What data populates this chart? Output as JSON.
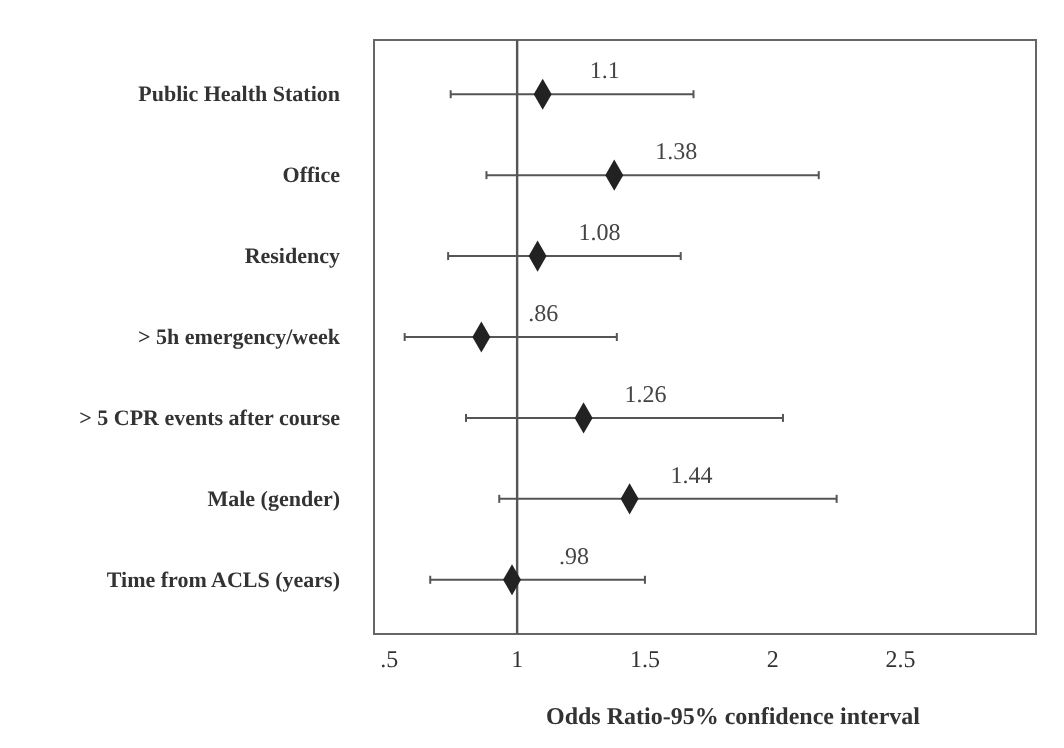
{
  "chart_data": {
    "type": "scatter",
    "orientation": "horizontal",
    "marker": "diamond",
    "categories": [
      "Public Health Station",
      "Office",
      "Residency",
      "> 5h emergency/week",
      "> 5 CPR events after course",
      "Male (gender)",
      "Time from ACLS (years)"
    ],
    "values": [
      1.1,
      1.38,
      1.08,
      0.86,
      1.26,
      1.44,
      0.98
    ],
    "errors": [
      [
        0.74,
        1.69
      ],
      [
        0.88,
        2.18
      ],
      [
        0.73,
        1.64
      ],
      [
        0.56,
        1.39
      ],
      [
        0.8,
        2.04
      ],
      [
        0.93,
        2.25
      ],
      [
        0.66,
        1.5
      ]
    ],
    "value_labels": [
      "1.1",
      "1.38",
      "1.08",
      ".86",
      "1.26",
      "1.44",
      ".98"
    ],
    "color": "#222222",
    "xlim": [
      0.44,
      3.03
    ],
    "xticks": [
      {
        "value": 0.5,
        "label": ".5"
      },
      1,
      1.5,
      2,
      2.5
    ],
    "xlabel": "Odds Ratio-95% confidence interval",
    "ref_lines": [
      {
        "axis": "x",
        "value": 1,
        "color": "#555555"
      }
    ],
    "grid": false
  }
}
